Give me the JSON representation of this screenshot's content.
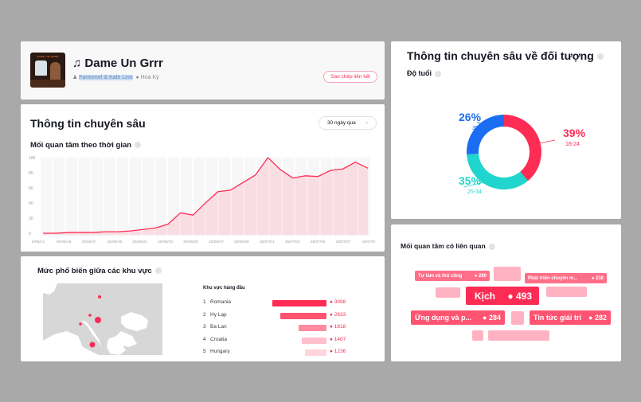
{
  "song": {
    "title": "Dame Un Grrr",
    "music_note": "♫",
    "artist": "Fantomel & Kate Linn",
    "location": "Hoa Kỳ",
    "cover_text": "DAME UN GRRR",
    "copy_link_label": "Sao chép liên kết"
  },
  "insights": {
    "title": "Thông tin chuyên sâu",
    "period_selected": "30 ngày qua",
    "interest_over_time_title": "Mối quan tâm theo thời gian"
  },
  "chart_data": {
    "type": "area",
    "title": "Mối quan tâm theo thời gian",
    "xlabel": "",
    "ylabel": "",
    "ylim": [
      0,
      100
    ],
    "yticks": [
      0,
      20,
      40,
      60,
      80,
      100
    ],
    "grid": true,
    "color": "#fe2c55",
    "x": [
      "25/06/13",
      "25/06/14",
      "25/06/15",
      "25/06/16",
      "25/06/17",
      "25/06/18",
      "25/06/19",
      "25/06/20",
      "25/06/21",
      "25/06/22",
      "25/06/23",
      "25/06/24",
      "25/06/25",
      "25/06/26",
      "25/06/27",
      "25/06/28",
      "25/06/29",
      "25/06/30",
      "25/07/01",
      "25/07/02",
      "25/07/03",
      "25/07/04",
      "25/07/05",
      "25/07/06",
      "25/07/07",
      "25/07/08",
      "25/07/09"
    ],
    "xtick_labels": [
      "5/06/13",
      "25/06/15",
      "25/06/17",
      "25/06/19",
      "25/06/21",
      "25/06/23",
      "25/06/25",
      "25/06/27",
      "25/06/29",
      "25/07/01",
      "25/07/03",
      "25/07/05",
      "25/07/07",
      "25/07/0"
    ],
    "values": [
      0,
      0,
      1,
      1,
      1,
      2,
      2,
      3,
      5,
      7,
      12,
      27,
      24,
      40,
      55,
      57,
      67,
      77,
      100,
      84,
      73,
      76,
      75,
      83,
      85,
      94,
      86
    ]
  },
  "regions": {
    "title": "Mức phổ biến giữa các khu vực",
    "top_heading": "Khu vực hàng đầu",
    "items": [
      {
        "rank": "1",
        "name": "Romania",
        "value": 3098,
        "value_label": "3098",
        "color": "#fe2c55"
      },
      {
        "rank": "2",
        "name": "Hy Lạp",
        "value": 2633,
        "value_label": "2633",
        "color": "#ff5372"
      },
      {
        "rank": "3",
        "name": "Ba Lan",
        "value": 1618,
        "value_label": "1618",
        "color": "#ff8aa0"
      },
      {
        "rank": "4",
        "name": "Croatia",
        "value": 1407,
        "value_label": "1407",
        "color": "#ffbfcb"
      },
      {
        "rank": "5",
        "name": "Hungary",
        "value": 1236,
        "value_label": "1236",
        "color": "#ffd5dd"
      }
    ]
  },
  "audience": {
    "title": "Thông tin chuyên sâu về đối tượng",
    "age_title": "Độ tuổi",
    "age_groups": [
      {
        "label": "18-24",
        "percent": 39,
        "percent_label": "39%",
        "color": "#fe2c55"
      },
      {
        "label": "25-34",
        "percent": 35,
        "percent_label": "35%",
        "color": "#20d5ce"
      },
      {
        "label": "35+",
        "percent": 26,
        "percent_label": "26%",
        "color": "#1b6ef3"
      }
    ]
  },
  "related": {
    "title": "Mối quan tâm có liên quan",
    "tags": [
      {
        "label": "Kịch",
        "score": "493"
      },
      {
        "label": "Ứng dụng và p...",
        "score": "284"
      },
      {
        "label": "Tin tức giải trí",
        "score": "282"
      },
      {
        "label": "Tự làm và thủ công",
        "score": "280"
      },
      {
        "label": "Phát triển chuyên m...",
        "score": "238"
      }
    ]
  }
}
